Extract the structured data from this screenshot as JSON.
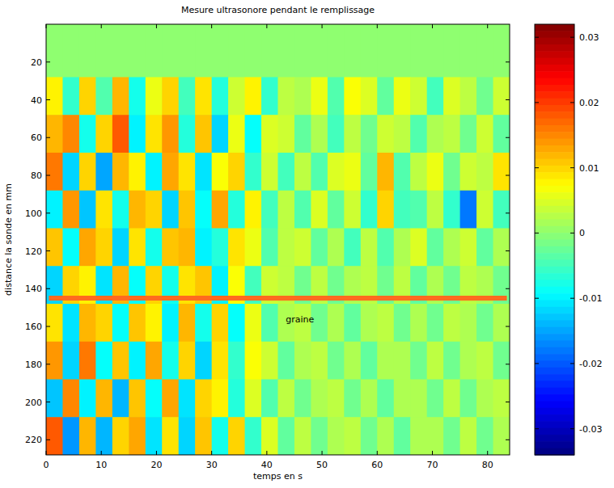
{
  "chart_data": {
    "type": "heatmap",
    "title": "Mesure ultrasonore pendant le remplissage",
    "x_label": "temps en s",
    "y_label": "distance  la sonde en mm",
    "xlim": [
      0,
      84
    ],
    "ylim": [
      0,
      228
    ],
    "xticks": [
      0,
      10,
      20,
      30,
      40,
      50,
      60,
      70,
      80
    ],
    "yticks": [
      20,
      40,
      60,
      80,
      100,
      120,
      140,
      160,
      180,
      200,
      220
    ],
    "x_edges": [
      0,
      3,
      6,
      9,
      12,
      15,
      18,
      21,
      24,
      27,
      30,
      33,
      36,
      39,
      42,
      45,
      48,
      51,
      54,
      57,
      60,
      63,
      66,
      69,
      72,
      75,
      78,
      81,
      84
    ],
    "y_edges": [
      0,
      28,
      48,
      68,
      88,
      108,
      128,
      148,
      168,
      188,
      208,
      228
    ],
    "cells": [
      [
        0,
        0,
        0,
        0,
        0,
        0,
        0,
        0,
        0,
        0,
        0,
        0,
        0,
        0,
        0,
        0,
        0,
        0,
        0,
        0,
        0,
        0,
        0,
        0,
        0,
        0,
        0,
        0
      ],
      [
        0.008,
        -0.006,
        0.01,
        -0.004,
        0.012,
        -0.008,
        0.006,
        0.01,
        -0.005,
        0.009,
        -0.007,
        0.004,
        0.008,
        -0.006,
        0.003,
        0.002,
        0.006,
        -0.004,
        0.007,
        0.005,
        -0.003,
        0.006,
        0.004,
        -0.005,
        0.005,
        0.003,
        -0.002,
        0.004
      ],
      [
        0.012,
        0.015,
        -0.008,
        0.01,
        0.018,
        -0.01,
        0.009,
        0.014,
        -0.007,
        0.011,
        -0.012,
        0.006,
        -0.009,
        0.005,
        0.004,
        -0.003,
        0.002,
        -0.005,
        0.003,
        -0.002,
        0.004,
        0.003,
        -0.004,
        0.002,
        0.003,
        -0.002,
        0.004,
        -0.003
      ],
      [
        0.016,
        -0.012,
        0.01,
        -0.015,
        0.012,
        0.008,
        -0.01,
        0.013,
        0.009,
        -0.011,
        0.007,
        0.01,
        -0.006,
        0.004,
        -0.005,
        0.003,
        -0.004,
        0.005,
        0.006,
        -0.003,
        0.012,
        -0.004,
        0.003,
        0.006,
        -0.002,
        0.004,
        0.003,
        0.009
      ],
      [
        -0.01,
        0.014,
        -0.013,
        0.009,
        -0.008,
        0.012,
        0.01,
        -0.012,
        0.011,
        -0.009,
        0.013,
        -0.007,
        0.008,
        -0.005,
        0.003,
        -0.004,
        0.005,
        -0.003,
        0.004,
        -0.006,
        0.01,
        -0.005,
        -0.004,
        0.003,
        -0.006,
        -0.018,
        0.004,
        -0.005
      ],
      [
        0.011,
        -0.009,
        0.013,
        0.01,
        -0.012,
        0.009,
        -0.008,
        0.011,
        0.012,
        -0.01,
        -0.007,
        0.009,
        0.006,
        -0.004,
        0.003,
        0.004,
        -0.003,
        0.002,
        -0.005,
        0.003,
        -0.004,
        0.002,
        0.005,
        -0.003,
        0.002,
        0.004,
        -0.003,
        0.002
      ],
      [
        -0.012,
        0.01,
        0.008,
        -0.011,
        0.012,
        -0.009,
        0.01,
        -0.008,
        0.009,
        0.011,
        -0.01,
        0.007,
        -0.005,
        0.004,
        0.003,
        -0.002,
        0.003,
        -0.002,
        0.002,
        0.003,
        -0.002,
        0.003,
        -0.003,
        0.002,
        -0.002,
        0.003,
        0.002,
        -0.002
      ],
      [
        0.009,
        -0.011,
        0.012,
        0.01,
        -0.009,
        0.011,
        0.008,
        -0.01,
        0.012,
        -0.008,
        0.01,
        -0.009,
        0.006,
        -0.004,
        0.002,
        0.003,
        -0.002,
        0.002,
        -0.003,
        0.002,
        0.003,
        -0.002,
        0.002,
        -0.002,
        0.003,
        0.002,
        -0.002,
        0.002
      ],
      [
        0.014,
        -0.012,
        0.016,
        -0.009,
        0.011,
        -0.01,
        0.013,
        -0.008,
        0.01,
        -0.012,
        0.009,
        -0.006,
        0.007,
        0.004,
        -0.003,
        0.002,
        0.003,
        -0.002,
        0.002,
        -0.003,
        0.002,
        0.002,
        -0.002,
        0.003,
        -0.002,
        0.002,
        0.003,
        -0.002
      ],
      [
        -0.013,
        0.015,
        -0.01,
        0.012,
        -0.014,
        0.011,
        -0.009,
        0.013,
        -0.011,
        0.01,
        0.008,
        -0.007,
        0.005,
        -0.004,
        0.003,
        -0.002,
        0.002,
        0.003,
        -0.002,
        0.002,
        -0.003,
        0.002,
        0.002,
        -0.002,
        0.003,
        -0.002,
        0.002,
        0.003
      ],
      [
        0.018,
        -0.016,
        0.012,
        -0.014,
        0.01,
        0.013,
        -0.011,
        0.009,
        -0.012,
        0.011,
        -0.008,
        0.01,
        -0.006,
        0.005,
        -0.003,
        0.003,
        -0.002,
        0.002,
        0.003,
        -0.002,
        0.002,
        -0.003,
        0.002,
        0.002,
        -0.002,
        0.003,
        -0.002,
        0.002
      ]
    ],
    "colorbar": {
      "range": [
        -0.034,
        0.032
      ],
      "ticks": [
        -0.03,
        -0.02,
        -0.01,
        0,
        0.01,
        0.02,
        0.03
      ]
    },
    "lines": [
      {
        "y": 145,
        "x": [
          0.5,
          83.5
        ],
        "color": "#ff6a1f"
      }
    ],
    "annotations": [
      {
        "text": "graine",
        "x": 46,
        "y": 158
      }
    ]
  }
}
